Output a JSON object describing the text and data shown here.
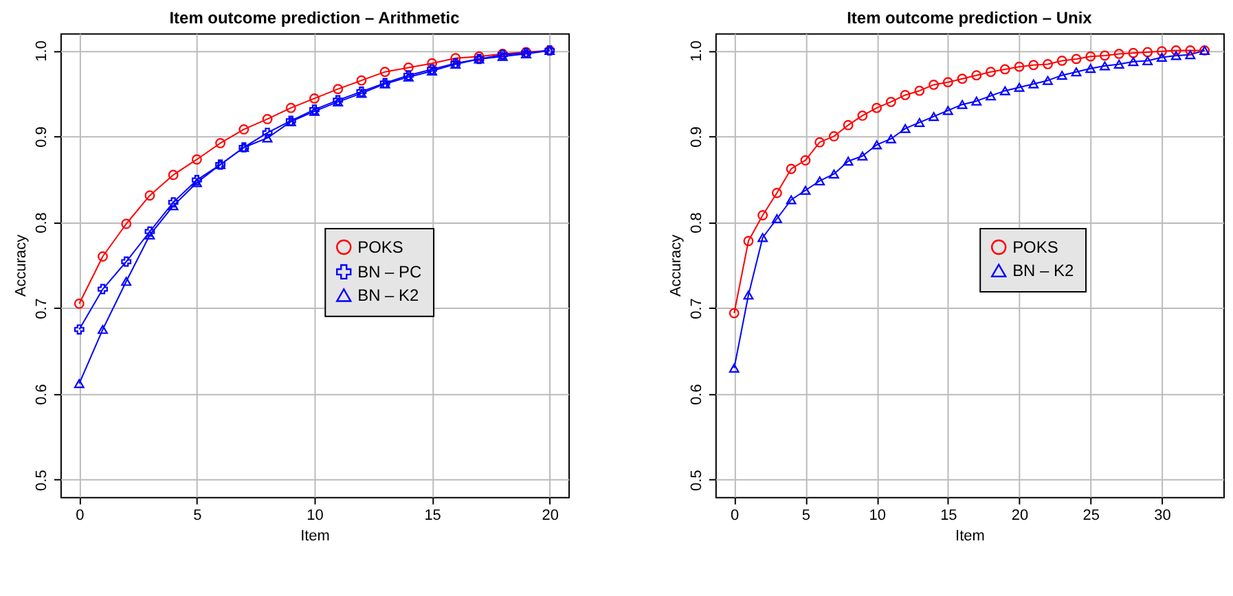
{
  "chart_data": [
    {
      "type": "line",
      "title": "Item outcome prediction – Arithmetic",
      "xlabel": "Item",
      "ylabel": "Accuracy",
      "x": [
        0,
        1,
        2,
        3,
        4,
        5,
        6,
        7,
        8,
        9,
        10,
        11,
        12,
        13,
        14,
        15,
        16,
        17,
        18,
        19,
        20
      ],
      "xlim": [
        -0.8,
        20.8
      ],
      "xticks": [
        0,
        5,
        10,
        15,
        20
      ],
      "ylim": [
        0.48,
        1.02
      ],
      "yticks": [
        0.5,
        0.6,
        0.7,
        0.8,
        0.9,
        {
          "value": 1,
          "label": "1.0"
        }
      ],
      "grid": true,
      "legend": "right",
      "line_style": "solid",
      "series": [
        {
          "name": "POKS",
          "color": "#ff0000",
          "marker": "circle",
          "values": [
            0.705,
            0.76,
            0.798,
            0.831,
            0.855,
            0.873,
            0.892,
            0.908,
            0.92,
            0.933,
            0.944,
            0.955,
            0.965,
            0.975,
            0.98,
            0.985,
            0.991,
            0.993,
            0.996,
            0.998,
            1.0
          ]
        },
        {
          "name": "BN – PC",
          "color": "#0000ff",
          "marker": "cross",
          "values": [
            0.675,
            0.722,
            0.754,
            0.789,
            0.823,
            0.849,
            0.867,
            0.887,
            0.904,
            0.918,
            0.931,
            0.942,
            0.952,
            0.962,
            0.971,
            0.978,
            0.985,
            0.99,
            0.995,
            0.997,
            1.0
          ]
        },
        {
          "name": "BN – K2",
          "color": "#0000ff",
          "marker": "triangle",
          "values": [
            0.612,
            0.675,
            0.731,
            0.785,
            0.819,
            0.846,
            0.867,
            0.887,
            0.898,
            0.917,
            0.929,
            0.94,
            0.95,
            0.961,
            0.969,
            0.976,
            0.984,
            0.99,
            0.993,
            0.996,
            1.0
          ]
        }
      ]
    },
    {
      "type": "line",
      "title": "Item outcome prediction – Unix",
      "xlabel": "Item",
      "ylabel": "Accuracy",
      "x": [
        0,
        1,
        2,
        3,
        4,
        5,
        6,
        7,
        8,
        9,
        10,
        11,
        12,
        13,
        14,
        15,
        16,
        17,
        18,
        19,
        20,
        21,
        22,
        23,
        24,
        25,
        26,
        27,
        28,
        29,
        30,
        31,
        32,
        33
      ],
      "xlim": [
        -1.32,
        34.32
      ],
      "xticks": [
        0,
        5,
        10,
        15,
        20,
        25,
        30
      ],
      "ylim": [
        0.48,
        1.02
      ],
      "yticks": [
        0.5,
        0.6,
        0.7,
        0.8,
        0.9,
        {
          "value": 1,
          "label": "1.0"
        }
      ],
      "grid": true,
      "legend": "right",
      "line_style": "solid",
      "series": [
        {
          "name": "POKS",
          "color": "#ff0000",
          "marker": "circle",
          "values": [
            0.694,
            0.778,
            0.808,
            0.834,
            0.862,
            0.872,
            0.893,
            0.9,
            0.913,
            0.924,
            0.933,
            0.94,
            0.948,
            0.953,
            0.96,
            0.963,
            0.967,
            0.971,
            0.975,
            0.978,
            0.981,
            0.983,
            0.984,
            0.988,
            0.99,
            0.993,
            0.994,
            0.996,
            0.997,
            0.998,
            0.999,
            1.0,
            1.0,
            1.0
          ]
        },
        {
          "name": "BN – K2",
          "color": "#0000ff",
          "marker": "triangle",
          "values": [
            0.63,
            0.715,
            0.782,
            0.804,
            0.826,
            0.837,
            0.848,
            0.856,
            0.871,
            0.877,
            0.89,
            0.897,
            0.909,
            0.916,
            0.923,
            0.93,
            0.937,
            0.941,
            0.947,
            0.953,
            0.957,
            0.961,
            0.965,
            0.971,
            0.975,
            0.979,
            0.982,
            0.984,
            0.987,
            0.988,
            0.992,
            0.994,
            0.995,
            1.0
          ]
        }
      ]
    }
  ]
}
